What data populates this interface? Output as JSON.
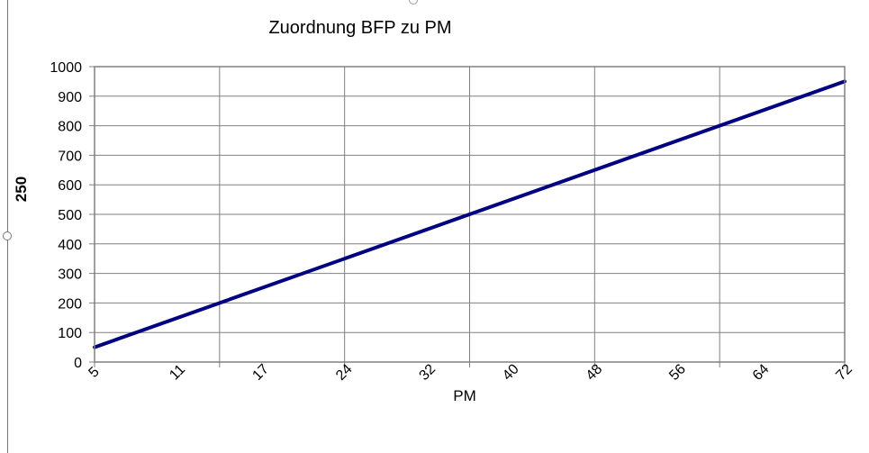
{
  "side_label": "250",
  "chart_data": {
    "type": "line",
    "title": "Zuordnung BFP zu PM",
    "xlabel": "PM",
    "ylabel": "",
    "categories": [
      "5",
      "11",
      "17",
      "24",
      "32",
      "40",
      "48",
      "56",
      "64",
      "72"
    ],
    "x_range": [
      0,
      12
    ],
    "ylim": [
      0,
      1000
    ],
    "y_ticks": [
      0,
      100,
      200,
      300,
      400,
      500,
      600,
      700,
      800,
      900,
      1000
    ],
    "vertical_grid": [
      0,
      2,
      4,
      6,
      8,
      10,
      12
    ],
    "grid": true,
    "series": [
      {
        "color": "#000080",
        "x": [
          0,
          12
        ],
        "values": [
          50,
          950
        ]
      }
    ]
  }
}
